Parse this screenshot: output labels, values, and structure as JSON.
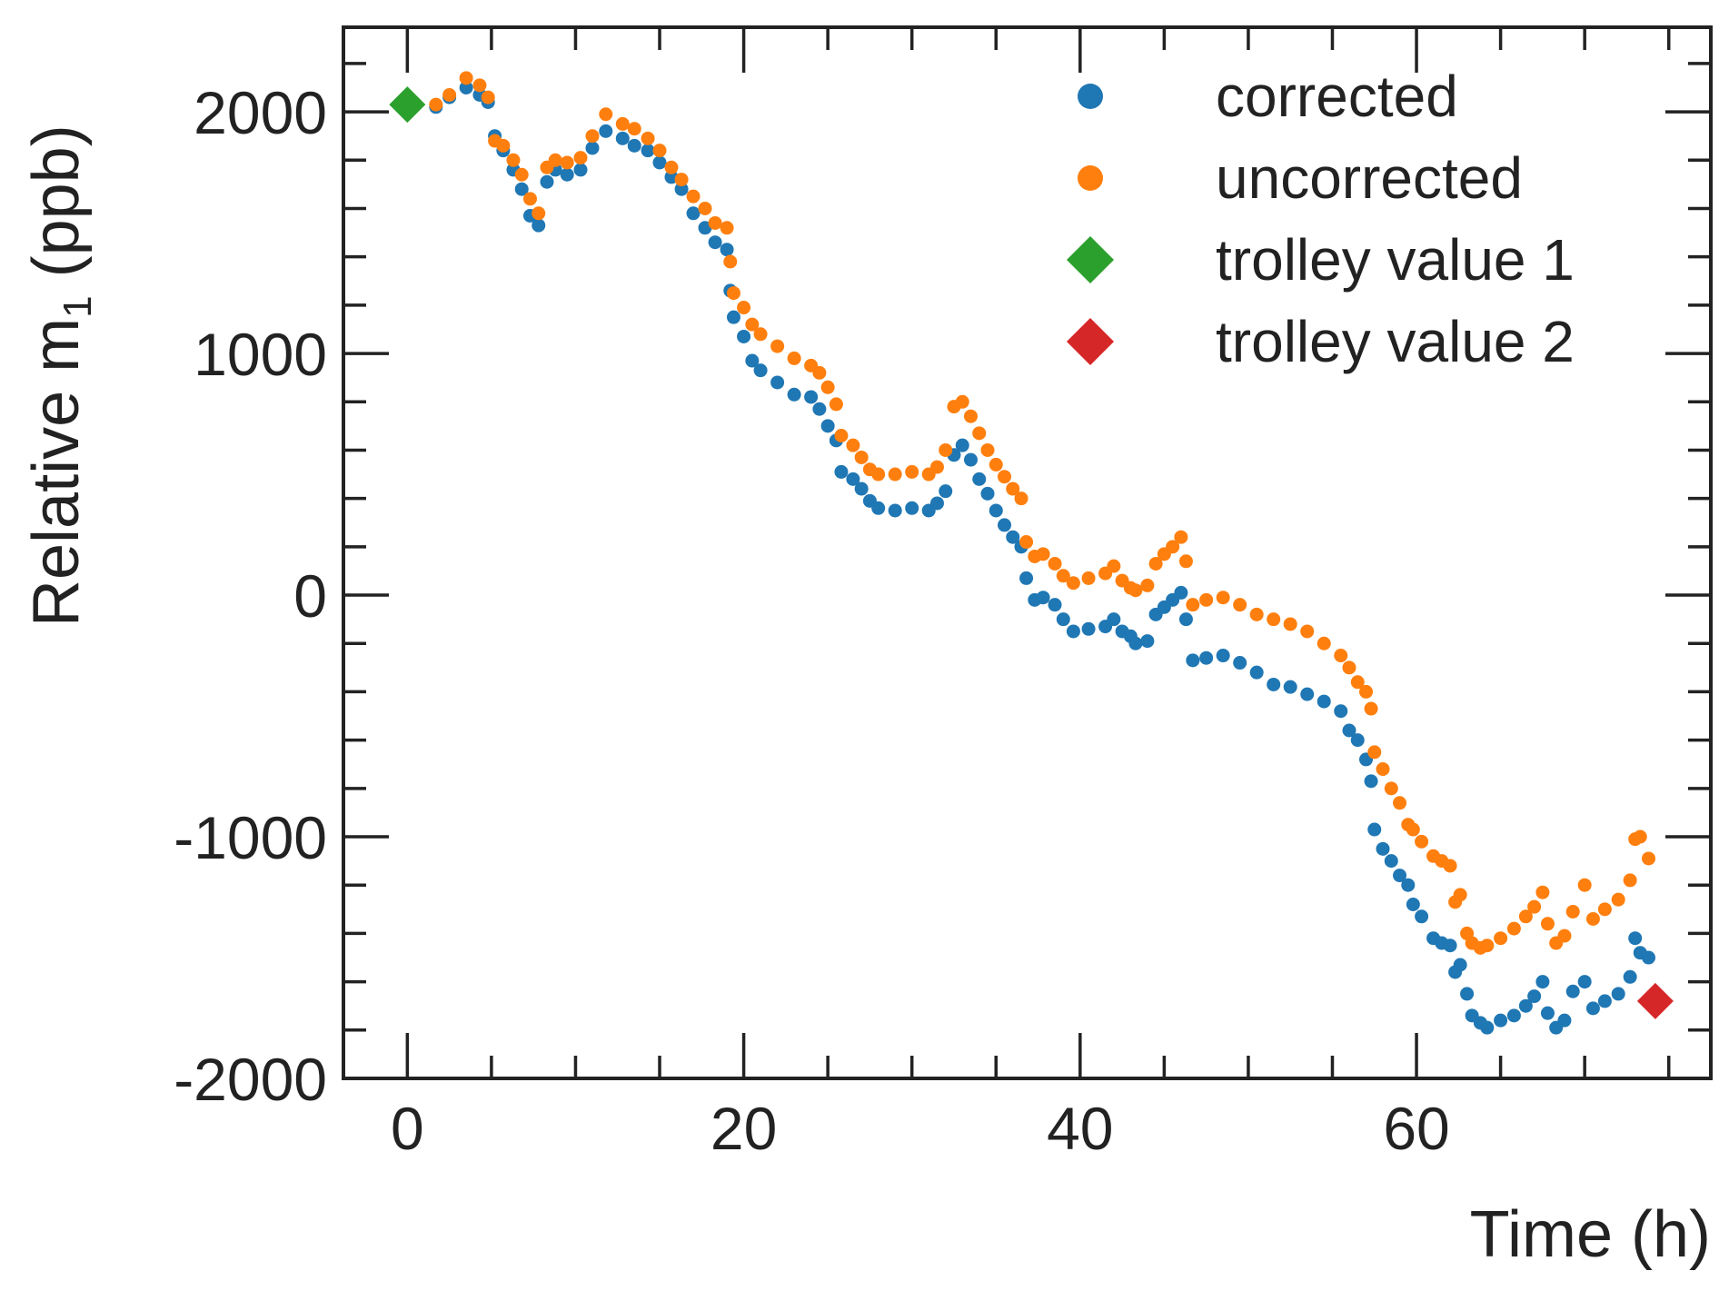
{
  "chart_data": {
    "type": "scatter",
    "title": "",
    "xlabel": "Time (h)",
    "ylabel": "Relative m",
    "ylabel_subscript": "1",
    "ylabel_unit": "(ppb)",
    "xlim": [
      -3.8,
      77.5
    ],
    "ylim": [
      -2000,
      2350
    ],
    "xticks": [
      0,
      20,
      40,
      60
    ],
    "xtick_labels": [
      "0",
      "20",
      "40",
      "60"
    ],
    "yticks": [
      -2000,
      -1000,
      0,
      1000,
      2000
    ],
    "ytick_labels": [
      "-2000",
      "-1000",
      "0",
      "1000",
      "2000"
    ],
    "x_minor_step": 5,
    "y_minor_step": 200,
    "legend_position": "top-right",
    "series": [
      {
        "name": "corrected",
        "color": "#1f77b4",
        "marker": "circle",
        "points": [
          [
            1.7,
            2020
          ],
          [
            2.5,
            2060
          ],
          [
            3.5,
            2100
          ],
          [
            4.3,
            2070
          ],
          [
            4.8,
            2040
          ],
          [
            5.2,
            1900
          ],
          [
            5.7,
            1840
          ],
          [
            6.3,
            1760
          ],
          [
            6.8,
            1680
          ],
          [
            7.3,
            1570
          ],
          [
            7.8,
            1530
          ],
          [
            8.3,
            1710
          ],
          [
            8.8,
            1760
          ],
          [
            9.5,
            1740
          ],
          [
            10.3,
            1760
          ],
          [
            11.0,
            1850
          ],
          [
            11.8,
            1920
          ],
          [
            12.8,
            1890
          ],
          [
            13.5,
            1860
          ],
          [
            14.3,
            1840
          ],
          [
            15.0,
            1790
          ],
          [
            15.7,
            1730
          ],
          [
            16.3,
            1680
          ],
          [
            17.0,
            1580
          ],
          [
            17.7,
            1520
          ],
          [
            18.3,
            1460
          ],
          [
            19.0,
            1430
          ],
          [
            19.2,
            1260
          ],
          [
            19.4,
            1150
          ],
          [
            20.0,
            1070
          ],
          [
            20.5,
            970
          ],
          [
            21.0,
            930
          ],
          [
            22.0,
            880
          ],
          [
            23.0,
            830
          ],
          [
            24.0,
            820
          ],
          [
            24.5,
            770
          ],
          [
            25.0,
            700
          ],
          [
            25.5,
            640
          ],
          [
            25.8,
            510
          ],
          [
            26.5,
            480
          ],
          [
            27.0,
            440
          ],
          [
            27.5,
            390
          ],
          [
            28.0,
            360
          ],
          [
            29.0,
            350
          ],
          [
            30.0,
            360
          ],
          [
            31.0,
            350
          ],
          [
            31.5,
            380
          ],
          [
            32.0,
            430
          ],
          [
            32.5,
            580
          ],
          [
            33.0,
            620
          ],
          [
            33.5,
            560
          ],
          [
            34.0,
            480
          ],
          [
            34.5,
            420
          ],
          [
            35.0,
            350
          ],
          [
            35.5,
            290
          ],
          [
            36.0,
            240
          ],
          [
            36.5,
            200
          ],
          [
            36.8,
            70
          ],
          [
            37.3,
            -20
          ],
          [
            37.8,
            -10
          ],
          [
            38.5,
            -40
          ],
          [
            39.0,
            -100
          ],
          [
            39.6,
            -150
          ],
          [
            40.5,
            -140
          ],
          [
            41.5,
            -130
          ],
          [
            42.0,
            -100
          ],
          [
            42.5,
            -150
          ],
          [
            43.0,
            -170
          ],
          [
            43.3,
            -200
          ],
          [
            44.0,
            -190
          ],
          [
            44.5,
            -80
          ],
          [
            45.0,
            -50
          ],
          [
            45.5,
            -20
          ],
          [
            46.0,
            10
          ],
          [
            46.3,
            -100
          ],
          [
            46.7,
            -270
          ],
          [
            47.5,
            -260
          ],
          [
            48.5,
            -250
          ],
          [
            49.5,
            -280
          ],
          [
            50.5,
            -320
          ],
          [
            51.5,
            -370
          ],
          [
            52.5,
            -380
          ],
          [
            53.5,
            -410
          ],
          [
            54.5,
            -440
          ],
          [
            55.5,
            -480
          ],
          [
            56.0,
            -560
          ],
          [
            56.5,
            -600
          ],
          [
            57.0,
            -680
          ],
          [
            57.3,
            -770
          ],
          [
            57.5,
            -970
          ],
          [
            58.0,
            -1050
          ],
          [
            58.5,
            -1100
          ],
          [
            59.0,
            -1160
          ],
          [
            59.5,
            -1200
          ],
          [
            59.8,
            -1280
          ],
          [
            60.3,
            -1330
          ],
          [
            61.0,
            -1420
          ],
          [
            61.5,
            -1440
          ],
          [
            62.0,
            -1450
          ],
          [
            62.3,
            -1560
          ],
          [
            62.6,
            -1530
          ],
          [
            63.0,
            -1650
          ],
          [
            63.3,
            -1740
          ],
          [
            63.8,
            -1770
          ],
          [
            64.2,
            -1790
          ],
          [
            65.0,
            -1760
          ],
          [
            65.8,
            -1740
          ],
          [
            66.5,
            -1700
          ],
          [
            67.0,
            -1660
          ],
          [
            67.5,
            -1600
          ],
          [
            67.8,
            -1730
          ],
          [
            68.3,
            -1790
          ],
          [
            68.8,
            -1760
          ],
          [
            69.3,
            -1640
          ],
          [
            70.0,
            -1600
          ],
          [
            70.5,
            -1710
          ],
          [
            71.2,
            -1680
          ],
          [
            72.0,
            -1650
          ],
          [
            72.7,
            -1580
          ],
          [
            73.0,
            -1420
          ],
          [
            73.3,
            -1480
          ],
          [
            73.8,
            -1500
          ]
        ]
      },
      {
        "name": "uncorrected",
        "color": "#ff7f0e",
        "marker": "circle",
        "points": [
          [
            1.7,
            2030
          ],
          [
            2.5,
            2070
          ],
          [
            3.5,
            2140
          ],
          [
            4.3,
            2110
          ],
          [
            4.8,
            2060
          ],
          [
            5.2,
            1880
          ],
          [
            5.7,
            1860
          ],
          [
            6.3,
            1800
          ],
          [
            6.8,
            1740
          ],
          [
            7.3,
            1640
          ],
          [
            7.8,
            1580
          ],
          [
            8.3,
            1770
          ],
          [
            8.8,
            1800
          ],
          [
            9.5,
            1790
          ],
          [
            10.3,
            1810
          ],
          [
            11.0,
            1900
          ],
          [
            11.8,
            1990
          ],
          [
            12.8,
            1950
          ],
          [
            13.5,
            1930
          ],
          [
            14.3,
            1890
          ],
          [
            15.0,
            1840
          ],
          [
            15.7,
            1770
          ],
          [
            16.3,
            1720
          ],
          [
            17.0,
            1650
          ],
          [
            17.7,
            1600
          ],
          [
            18.3,
            1540
          ],
          [
            19.0,
            1520
          ],
          [
            19.2,
            1380
          ],
          [
            19.4,
            1250
          ],
          [
            20.0,
            1190
          ],
          [
            20.5,
            1120
          ],
          [
            21.0,
            1080
          ],
          [
            22.0,
            1030
          ],
          [
            23.0,
            980
          ],
          [
            24.0,
            950
          ],
          [
            24.5,
            920
          ],
          [
            25.0,
            860
          ],
          [
            25.5,
            790
          ],
          [
            25.8,
            660
          ],
          [
            26.5,
            620
          ],
          [
            27.0,
            570
          ],
          [
            27.5,
            520
          ],
          [
            28.0,
            500
          ],
          [
            29.0,
            500
          ],
          [
            30.0,
            510
          ],
          [
            31.0,
            500
          ],
          [
            31.5,
            530
          ],
          [
            32.0,
            600
          ],
          [
            32.5,
            780
          ],
          [
            33.0,
            800
          ],
          [
            33.5,
            740
          ],
          [
            34.0,
            670
          ],
          [
            34.5,
            600
          ],
          [
            35.0,
            540
          ],
          [
            35.5,
            490
          ],
          [
            36.0,
            440
          ],
          [
            36.5,
            400
          ],
          [
            36.8,
            220
          ],
          [
            37.3,
            160
          ],
          [
            37.8,
            170
          ],
          [
            38.5,
            130
          ],
          [
            39.0,
            80
          ],
          [
            39.6,
            50
          ],
          [
            40.5,
            70
          ],
          [
            41.5,
            90
          ],
          [
            42.0,
            120
          ],
          [
            42.5,
            60
          ],
          [
            43.0,
            30
          ],
          [
            43.3,
            20
          ],
          [
            44.0,
            40
          ],
          [
            44.5,
            130
          ],
          [
            45.0,
            170
          ],
          [
            45.5,
            200
          ],
          [
            46.0,
            240
          ],
          [
            46.3,
            140
          ],
          [
            46.7,
            -40
          ],
          [
            47.5,
            -20
          ],
          [
            48.5,
            -10
          ],
          [
            49.5,
            -40
          ],
          [
            50.5,
            -80
          ],
          [
            51.5,
            -100
          ],
          [
            52.5,
            -120
          ],
          [
            53.5,
            -150
          ],
          [
            54.5,
            -200
          ],
          [
            55.5,
            -250
          ],
          [
            56.0,
            -300
          ],
          [
            56.5,
            -360
          ],
          [
            57.0,
            -400
          ],
          [
            57.3,
            -470
          ],
          [
            57.5,
            -650
          ],
          [
            58.0,
            -720
          ],
          [
            58.5,
            -800
          ],
          [
            59.0,
            -860
          ],
          [
            59.5,
            -950
          ],
          [
            59.8,
            -970
          ],
          [
            60.3,
            -1020
          ],
          [
            61.0,
            -1080
          ],
          [
            61.5,
            -1100
          ],
          [
            62.0,
            -1120
          ],
          [
            62.3,
            -1270
          ],
          [
            62.6,
            -1240
          ],
          [
            63.0,
            -1400
          ],
          [
            63.3,
            -1440
          ],
          [
            63.8,
            -1460
          ],
          [
            64.2,
            -1450
          ],
          [
            65.0,
            -1420
          ],
          [
            65.8,
            -1380
          ],
          [
            66.5,
            -1330
          ],
          [
            67.0,
            -1290
          ],
          [
            67.5,
            -1230
          ],
          [
            67.8,
            -1360
          ],
          [
            68.3,
            -1440
          ],
          [
            68.8,
            -1410
          ],
          [
            69.3,
            -1310
          ],
          [
            70.0,
            -1200
          ],
          [
            70.5,
            -1340
          ],
          [
            71.2,
            -1300
          ],
          [
            72.0,
            -1260
          ],
          [
            72.7,
            -1180
          ],
          [
            73.0,
            -1010
          ],
          [
            73.3,
            -1000
          ],
          [
            73.8,
            -1090
          ]
        ]
      },
      {
        "name": "trolley value 1",
        "color": "#2ca02c",
        "marker": "diamond",
        "points": [
          [
            0,
            2030
          ]
        ]
      },
      {
        "name": "trolley value 2",
        "color": "#d62728",
        "marker": "diamond",
        "points": [
          [
            74.2,
            -1680
          ]
        ]
      }
    ]
  }
}
